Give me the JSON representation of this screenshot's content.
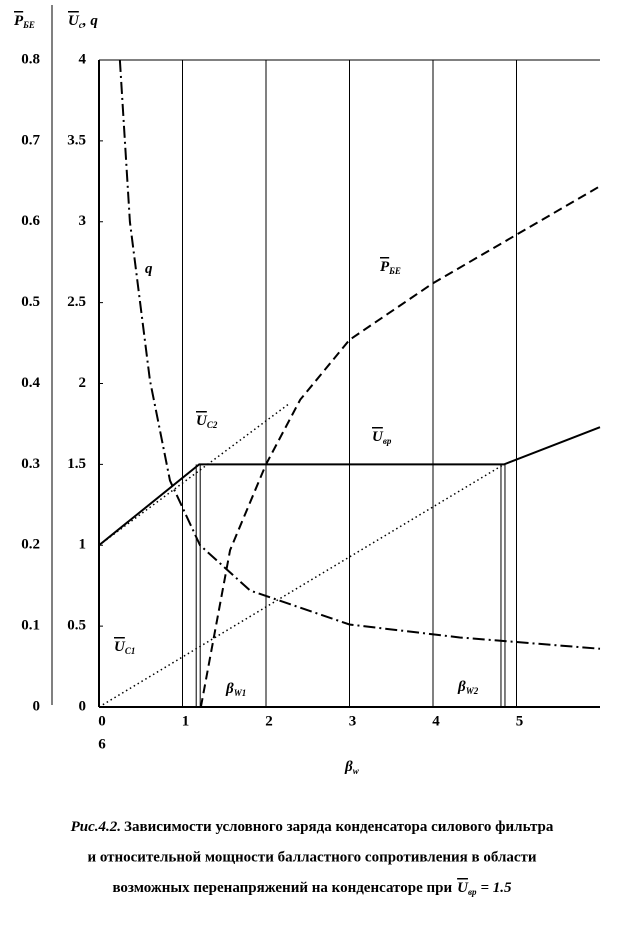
{
  "chart_data": {
    "type": "line",
    "y_label": {
      "main": "U",
      "sub": "c",
      "rest": ", q"
    },
    "y2_label": {
      "main": "P",
      "sub": "БЕ"
    },
    "x_label": {
      "main": "β",
      "sub": "w"
    },
    "xlim": [
      0,
      6
    ],
    "xticks": [
      0,
      1,
      2,
      3,
      4,
      5
    ],
    "x_extra_label": "6",
    "ylim": [
      0,
      4
    ],
    "yticks": [
      0,
      0.5,
      1,
      1.5,
      2,
      2.5,
      3,
      3.5,
      4
    ],
    "y2lim": [
      0,
      0.8
    ],
    "y2ticks": [
      0,
      0.1,
      0.2,
      0.3,
      0.4,
      0.5,
      0.6,
      0.7,
      0.8
    ],
    "grid": true,
    "markers": [
      1.2,
      4.85
    ],
    "series": [
      {
        "style": "solid",
        "color": "#000000",
        "x": [
          0,
          1.2,
          4.85,
          6
        ],
        "values": [
          1,
          1.5,
          1.5,
          1.73
        ]
      },
      {
        "style": "dotted",
        "color": "#000000",
        "x": [
          0,
          2.29
        ],
        "values": [
          1,
          1.88
        ]
      },
      {
        "style": "dotted",
        "color": "#000000",
        "x": [
          0,
          4.85
        ],
        "values": [
          0,
          1.5
        ]
      },
      {
        "style": "dashdot",
        "color": "#000000",
        "x": [
          0.25,
          0.37,
          0.61,
          0.85,
          1.21,
          1.81,
          3.0,
          4.32,
          6.0
        ],
        "values": [
          4.0,
          3.0,
          2.02,
          1.4,
          1.0,
          0.72,
          0.51,
          0.43,
          0.36
        ]
      },
      {
        "style": "dashed",
        "color": "#000000",
        "axis": "y2",
        "x": [
          1.22,
          1.57,
          2.0,
          2.41,
          3.0,
          4.0,
          5.0,
          6.0
        ],
        "values": [
          0,
          0.194,
          0.3,
          0.38,
          0.454,
          0.524,
          0.584,
          0.644
        ]
      }
    ],
    "annotations": [
      {
        "main": "q"
      },
      {
        "main": "P",
        "sub": "БЕ"
      },
      {
        "main": "U",
        "sub": "C2"
      },
      {
        "main": "U",
        "sub": "вр"
      },
      {
        "main": "U",
        "sub": "C1"
      },
      {
        "main": "β",
        "sub": "W1"
      },
      {
        "main": "β",
        "sub": "W2"
      }
    ]
  },
  "caption": {
    "fig": "Рис.4.2.",
    "line1": "Зависимости условного заряда конденсатора  силового фильтра",
    "line2": "и относительной мощности балластного сопротивления в области",
    "line3": "возможных перенапряжений на конденсаторе при",
    "sym": {
      "main": "U",
      "sub": "вр"
    },
    "tail": "= 1.5"
  }
}
